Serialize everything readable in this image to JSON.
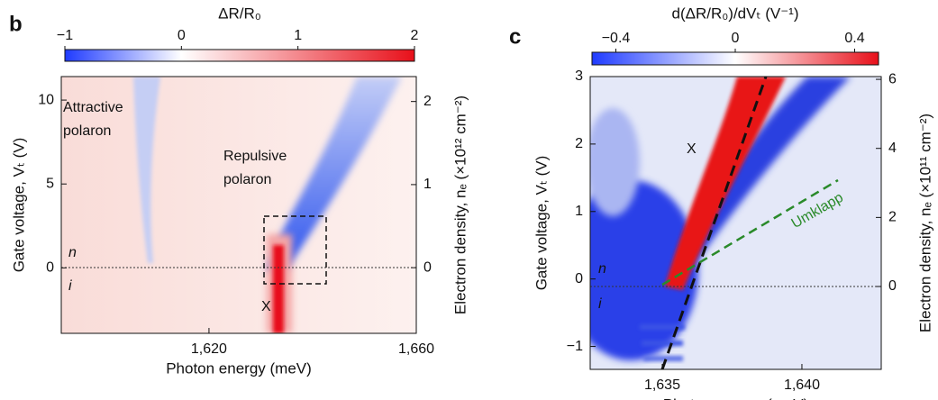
{
  "chart_data": [
    {
      "type": "heatmap",
      "panel": "b",
      "xlabel": "Photon energy (meV)",
      "ylabel": "Gate voltage, Vₜ (V)",
      "y2label": "Electron density, nₑ (×10¹² cm⁻²)",
      "colorbar_label": "ΔR/R₀",
      "xlim": [
        1591.5,
        1660
      ],
      "xticks": [
        {
          "value": 1620,
          "label": "1,620"
        },
        {
          "value": 1660,
          "label": "1,660"
        }
      ],
      "ylim": [
        -3.9,
        11.4
      ],
      "yticks": [
        0,
        5,
        10
      ],
      "y2lim": [
        -0.79,
        2.3
      ],
      "y2ticks": [
        0,
        1,
        2
      ],
      "clim": [
        -1,
        2
      ],
      "cticks": [
        {
          "value": -1,
          "label": "−1"
        },
        0,
        1,
        2
      ],
      "colors": [
        "#1f3bff",
        "#ffffff",
        "#e8101a"
      ],
      "annotations": [
        "Attractive",
        "polaron",
        "Repulsive",
        "polaron",
        "n",
        "i",
        "X"
      ]
    },
    {
      "type": "heatmap",
      "panel": "c",
      "xlabel": "Photon energy (meV)",
      "ylabel": "Gate voltage, Vₜ (V)",
      "y2label": "Electron density, nₑ (×10¹¹ cm⁻²)",
      "colorbar_label": "d(ΔR/R₀)/dVₜ (V⁻¹)",
      "xlim": [
        1632.42,
        1642.84
      ],
      "xticks": [
        {
          "value": 1635,
          "label": "1,635"
        },
        {
          "value": 1640,
          "label": "1,640"
        }
      ],
      "ylim": [
        -1.34,
        3
      ],
      "yticks": [
        {
          "value": -1,
          "label": "−1"
        },
        0,
        1,
        2,
        3
      ],
      "y2lim": [
        -2.4,
        6.08
      ],
      "y2ticks": [
        0,
        2,
        4,
        6
      ],
      "clim": [
        -0.48,
        0.48
      ],
      "cticks": [
        {
          "value": -0.4,
          "label": "−0.4"
        },
        0,
        0.4
      ],
      "colors": [
        "#1f3bff",
        "#ffffff",
        "#e8101a"
      ],
      "annotations": [
        "n",
        "i",
        "X",
        "Umklapp"
      ]
    }
  ]
}
